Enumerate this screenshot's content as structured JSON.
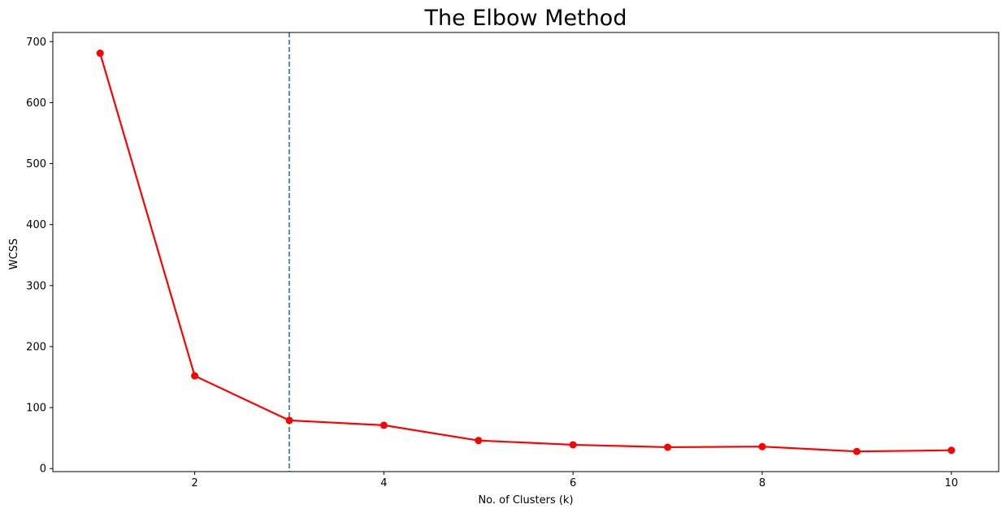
{
  "chart_data": {
    "type": "line",
    "title": "The Elbow Method",
    "xlabel": "No. of Clusters (k)",
    "ylabel": "WCSS",
    "x": [
      1,
      2,
      3,
      4,
      5,
      6,
      7,
      8,
      9,
      10
    ],
    "series": [
      {
        "values": [
          681,
          152,
          79,
          71,
          46,
          39,
          35,
          36,
          28,
          30
        ],
        "color": "#ff0000",
        "marker": "circle"
      }
    ],
    "xlim": [
      0.5,
      10.5
    ],
    "ylim": [
      -5,
      715
    ],
    "xticks": [
      2,
      4,
      6,
      8,
      10
    ],
    "yticks": [
      0,
      100,
      200,
      300,
      400,
      500,
      600,
      700
    ],
    "grid": false,
    "reference_line": {
      "orientation": "vertical",
      "x": 3,
      "style": "dashed",
      "color": "#1f77b4"
    }
  }
}
